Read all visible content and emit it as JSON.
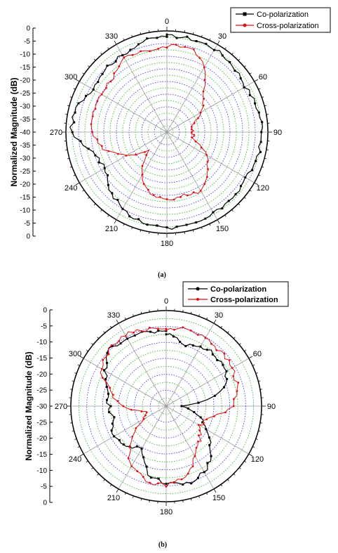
{
  "colors": {
    "co": "#000000",
    "cross": "#e01010",
    "ring_a": "#2a2ae0",
    "ring_b": "#20b020",
    "spoke": "#9a9a9a"
  },
  "chart_data": [
    {
      "type": "polar-line",
      "panel": "(a)",
      "ylabel": "Normalized Magnitude (dB)",
      "r_ticks": [
        "0",
        "-5",
        "-10",
        "-15",
        "-20",
        "-25",
        "-30",
        "-35",
        "-40",
        "-35",
        "-30",
        "-25",
        "-20",
        "-15",
        "-10",
        "-5",
        "0"
      ],
      "angle_ticks": [
        "0",
        "30",
        "60",
        "90",
        "120",
        "150",
        "180",
        "210",
        "240",
        "270",
        "300",
        "330"
      ],
      "rlim": [
        -40,
        0
      ],
      "grid": true,
      "legend_position": "top-right",
      "series": [
        {
          "name": "Co-polarization",
          "theta": [
            0,
            15,
            30,
            45,
            60,
            75,
            90,
            105,
            120,
            135,
            150,
            165,
            180,
            195,
            210,
            225,
            240,
            255,
            270,
            285,
            300,
            315,
            330,
            345
          ],
          "values": [
            -2,
            -2,
            -2,
            -3,
            -4,
            -3,
            -2,
            -3,
            -4,
            -3,
            -3,
            -3,
            -2,
            -3,
            -5,
            -8,
            -12,
            -10,
            -2,
            -3,
            -6,
            -5,
            -5,
            -3
          ]
        },
        {
          "name": "Cross-polarization",
          "theta": [
            0,
            15,
            30,
            45,
            60,
            75,
            90,
            105,
            120,
            135,
            150,
            165,
            180,
            195,
            210,
            225,
            240,
            255,
            270,
            285,
            300,
            315,
            330,
            345
          ],
          "values": [
            -6,
            -5,
            -10,
            -20,
            -24,
            -30,
            -30,
            -29,
            -22,
            -17,
            -13,
            -14,
            -13,
            -15,
            -20,
            -30,
            -22,
            -14,
            -10,
            -10,
            -10,
            -10,
            -6,
            -7
          ]
        }
      ]
    },
    {
      "type": "polar-line",
      "panel": "(b)",
      "ylabel": "Normalized Magnitude (dB)",
      "r_ticks": [
        "0",
        "-5",
        "-10",
        "-15",
        "-20",
        "-25",
        "-30",
        "-25",
        "-20",
        "-15",
        "-10",
        "-5",
        "0"
      ],
      "angle_ticks": [
        "0",
        "30",
        "60",
        "90",
        "120",
        "150",
        "180",
        "210",
        "240",
        "270",
        "300",
        "330"
      ],
      "rlim": [
        -30,
        0
      ],
      "grid": true,
      "legend_position": "top-right",
      "series": [
        {
          "name": "Co-polarization",
          "theta": [
            0,
            15,
            30,
            45,
            60,
            75,
            90,
            105,
            120,
            135,
            150,
            165,
            180,
            195,
            210,
            225,
            240,
            255,
            270,
            285,
            300,
            315,
            330,
            345
          ],
          "values": [
            -7,
            -10,
            -8,
            -8,
            -8,
            -12,
            -25,
            -20,
            -15,
            -10,
            -6,
            -5,
            -6,
            -8,
            -15,
            -12,
            -11,
            -13,
            -12,
            -11,
            -8,
            -5,
            -5,
            -6
          ]
        },
        {
          "name": "Cross-polarization",
          "theta": [
            0,
            15,
            30,
            45,
            60,
            75,
            90,
            105,
            120,
            135,
            150,
            165,
            180,
            195,
            210,
            225,
            240,
            255,
            270,
            285,
            300,
            315,
            330,
            345
          ],
          "values": [
            -6,
            -5,
            -5,
            -6,
            -6,
            -7,
            -9,
            -16,
            -18,
            -15,
            -12,
            -7,
            -5,
            -6,
            -8,
            -14,
            -22,
            -24,
            -16,
            -12,
            -6,
            -5,
            -4,
            -5
          ]
        }
      ]
    }
  ],
  "captions": [
    "(a)",
    "(b)"
  ]
}
